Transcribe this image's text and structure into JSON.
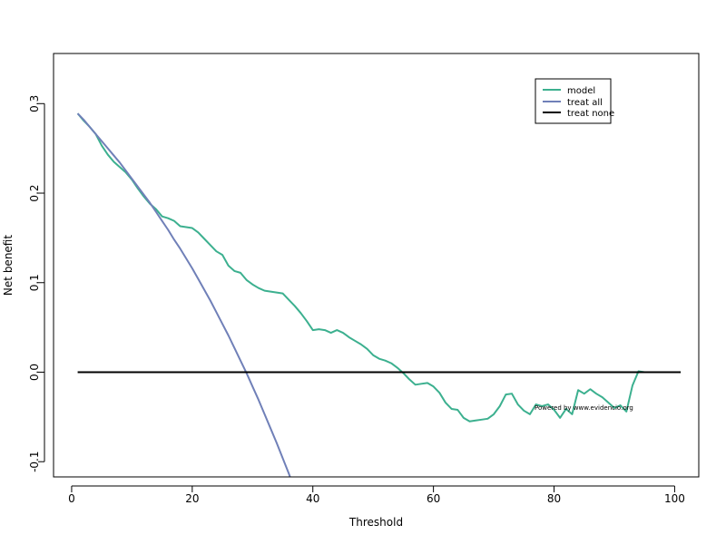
{
  "chart_data": {
    "type": "line",
    "title": "",
    "xlabel": "Threshold",
    "ylabel": "Net benefit",
    "xlim": [
      -3,
      104
    ],
    "ylim": [
      -0.117,
      0.356
    ],
    "xticks": [
      0,
      20,
      40,
      60,
      80,
      100
    ],
    "xtick_labels": [
      "0",
      "20",
      "40",
      "60",
      "80",
      "100"
    ],
    "yticks": [
      -0.1,
      0.0,
      0.1,
      0.2,
      0.3
    ],
    "ytick_labels": [
      "-0.1",
      "0.0",
      "0.1",
      "0.2",
      "0.3"
    ],
    "grid": false,
    "legend_position": "top-right",
    "annotation": "Powered by www.evidencio.org",
    "series": [
      {
        "name": "model",
        "color": "#3cb08f",
        "x": [
          1,
          2,
          3,
          4,
          5,
          6,
          7,
          8,
          9,
          10,
          11,
          12,
          13,
          14,
          15,
          16,
          17,
          18,
          19,
          20,
          21,
          22,
          23,
          24,
          25,
          26,
          27,
          28,
          29,
          30,
          31,
          32,
          33,
          34,
          35,
          36,
          37,
          38,
          39,
          40,
          41,
          42,
          43,
          44,
          45,
          46,
          47,
          48,
          49,
          50,
          51,
          52,
          53,
          54,
          55,
          56,
          57,
          58,
          59,
          60,
          61,
          62,
          63,
          64,
          65,
          66,
          67,
          68,
          69,
          70,
          71,
          72,
          73,
          74,
          75,
          76,
          77,
          78,
          79,
          80,
          81,
          82,
          83,
          84,
          85,
          86,
          87,
          88,
          89,
          90,
          91,
          92,
          93,
          94,
          95,
          96,
          97,
          98,
          99,
          100,
          101
        ],
        "y": [
          0.289,
          0.281,
          0.274,
          0.266,
          0.253,
          0.243,
          0.235,
          0.229,
          0.223,
          0.215,
          0.205,
          0.196,
          0.188,
          0.182,
          0.174,
          0.172,
          0.169,
          0.163,
          0.162,
          0.161,
          0.156,
          0.149,
          0.142,
          0.135,
          0.131,
          0.119,
          0.113,
          0.111,
          0.103,
          0.098,
          0.094,
          0.091,
          0.09,
          0.089,
          0.088,
          0.081,
          0.074,
          0.066,
          0.057,
          0.047,
          0.048,
          0.047,
          0.044,
          0.047,
          0.044,
          0.039,
          0.035,
          0.031,
          0.026,
          0.019,
          0.015,
          0.013,
          0.01,
          0.005,
          -0.001,
          -0.008,
          -0.014,
          -0.013,
          -0.012,
          -0.016,
          -0.023,
          -0.034,
          -0.041,
          -0.042,
          -0.051,
          -0.055,
          -0.054,
          -0.053,
          -0.052,
          -0.047,
          -0.038,
          -0.025,
          -0.024,
          -0.036,
          -0.043,
          -0.047,
          -0.036,
          -0.038,
          -0.036,
          -0.042,
          -0.051,
          -0.041,
          -0.047,
          -0.02,
          -0.024,
          -0.019,
          -0.024,
          -0.028,
          -0.034,
          -0.04,
          -0.037,
          -0.044,
          -0.015,
          0.001,
          0.0,
          0.0,
          0.0,
          0.0,
          0.0,
          0.0,
          0.0
        ]
      },
      {
        "name": "treat all",
        "color": "#7080b8",
        "x": [
          1,
          2,
          3,
          4,
          5,
          6,
          7,
          8,
          9,
          10,
          11,
          12,
          13,
          14,
          15,
          16,
          17,
          18,
          19,
          20,
          21,
          22,
          23,
          24,
          25,
          26,
          27,
          28,
          29,
          30,
          31,
          32,
          33,
          34,
          35,
          36,
          37,
          38
        ],
        "y": [
          0.289,
          0.282,
          0.274,
          0.266,
          0.258,
          0.25,
          0.242,
          0.234,
          0.225,
          0.216,
          0.207,
          0.198,
          0.189,
          0.179,
          0.169,
          0.159,
          0.148,
          0.138,
          0.127,
          0.116,
          0.104,
          0.092,
          0.08,
          0.067,
          0.054,
          0.041,
          0.027,
          0.013,
          -0.001,
          -0.016,
          -0.031,
          -0.047,
          -0.063,
          -0.079,
          -0.096,
          -0.113,
          -0.131,
          -0.149
        ]
      },
      {
        "name": "treat none",
        "color": "#000000",
        "x": [
          1,
          101
        ],
        "y": [
          0.0,
          0.0
        ]
      }
    ]
  }
}
